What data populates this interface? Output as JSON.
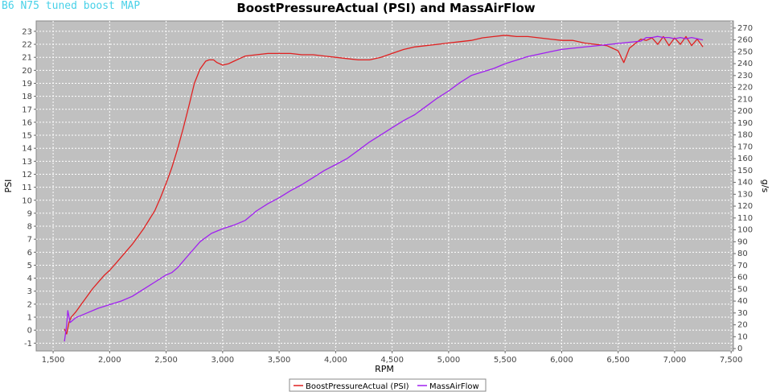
{
  "caption": "B6 N75 tuned boost MAP",
  "colors": {
    "plot_bg": "#c0c0c0",
    "grid": "#ffffff",
    "boost": "#e02020",
    "maf": "#a020f0"
  },
  "chart_data": {
    "type": "line",
    "title": "BoostPressureActual (PSI) and MassAirFlow",
    "xlabel": "RPM",
    "ylabel": "PSI",
    "y2label": "g/s",
    "xlim": [
      1350,
      7520
    ],
    "ylim": [
      -1.6,
      23.8
    ],
    "y2lim": [
      -2,
      276
    ],
    "x_ticks": [
      1500,
      2000,
      2500,
      3000,
      3500,
      4000,
      4500,
      5000,
      5500,
      6000,
      6500,
      7000,
      7500
    ],
    "x_tick_labels": [
      "1,500",
      "2,000",
      "2,500",
      "3,000",
      "3,500",
      "4,000",
      "4,500",
      "5,000",
      "5,500",
      "6,000",
      "6,500",
      "7,000",
      "7,500"
    ],
    "y_ticks": [
      -1,
      0,
      1,
      2,
      3,
      4,
      5,
      6,
      7,
      8,
      9,
      10,
      11,
      12,
      13,
      14,
      15,
      16,
      17,
      18,
      19,
      20,
      21,
      22,
      23
    ],
    "y2_ticks": [
      0,
      10,
      20,
      30,
      40,
      50,
      60,
      70,
      80,
      90,
      100,
      110,
      120,
      130,
      140,
      150,
      160,
      170,
      180,
      190,
      200,
      210,
      220,
      230,
      240,
      250,
      260,
      270
    ],
    "grid": true,
    "legend_position": "bottom-center",
    "series": [
      {
        "name": "BoostPressureActual (PSI)",
        "axis": "left",
        "x": [
          1600,
          1620,
          1640,
          1660,
          1700,
          1750,
          1800,
          1850,
          1900,
          1950,
          2000,
          2050,
          2100,
          2150,
          2200,
          2250,
          2300,
          2350,
          2400,
          2450,
          2500,
          2550,
          2600,
          2650,
          2700,
          2750,
          2800,
          2850,
          2880,
          2920,
          2950,
          3000,
          3050,
          3100,
          3150,
          3200,
          3300,
          3400,
          3500,
          3600,
          3700,
          3800,
          3900,
          4000,
          4100,
          4200,
          4300,
          4400,
          4500,
          4600,
          4700,
          4800,
          4900,
          5000,
          5100,
          5200,
          5300,
          5400,
          5500,
          5600,
          5700,
          5800,
          5900,
          6000,
          6100,
          6200,
          6300,
          6400,
          6500,
          6550,
          6600,
          6700,
          6750,
          6800,
          6850,
          6900,
          6950,
          7000,
          7050,
          7100,
          7150,
          7200,
          7250
        ],
        "y": [
          0.1,
          -0.3,
          0.6,
          1.0,
          1.4,
          2.0,
          2.6,
          3.2,
          3.7,
          4.2,
          4.6,
          5.1,
          5.6,
          6.1,
          6.6,
          7.2,
          7.8,
          8.5,
          9.2,
          10.2,
          11.3,
          12.5,
          13.9,
          15.5,
          17.2,
          19.0,
          20.1,
          20.7,
          20.8,
          20.8,
          20.6,
          20.4,
          20.5,
          20.7,
          20.9,
          21.1,
          21.2,
          21.3,
          21.3,
          21.3,
          21.2,
          21.2,
          21.1,
          21.0,
          20.9,
          20.8,
          20.8,
          21.0,
          21.3,
          21.6,
          21.8,
          21.9,
          22.0,
          22.1,
          22.2,
          22.3,
          22.5,
          22.6,
          22.7,
          22.6,
          22.6,
          22.5,
          22.4,
          22.3,
          22.3,
          22.1,
          22.0,
          21.9,
          21.5,
          20.6,
          21.7,
          22.4,
          22.3,
          22.5,
          22.0,
          22.6,
          21.9,
          22.5,
          22.0,
          22.6,
          21.9,
          22.4,
          21.8
        ]
      },
      {
        "name": "MassAirFlow",
        "axis": "right",
        "x": [
          1600,
          1620,
          1630,
          1650,
          1700,
          1800,
          1900,
          2000,
          2100,
          2200,
          2300,
          2400,
          2500,
          2550,
          2600,
          2700,
          2800,
          2900,
          3000,
          3100,
          3200,
          3300,
          3400,
          3500,
          3600,
          3700,
          3800,
          3900,
          4000,
          4100,
          4200,
          4300,
          4400,
          4500,
          4600,
          4700,
          4800,
          4900,
          5000,
          5100,
          5200,
          5300,
          5400,
          5500,
          5600,
          5700,
          5800,
          5900,
          6000,
          6100,
          6200,
          6300,
          6400,
          6500,
          6600,
          6700,
          6750,
          6800,
          6850,
          6900,
          6950,
          7000,
          7050,
          7100,
          7150,
          7200,
          7250
        ],
        "y": [
          6,
          20,
          32,
          22,
          26,
          30,
          34,
          37,
          40,
          44,
          50,
          56,
          62,
          64,
          68,
          79,
          90,
          97,
          101,
          104,
          108,
          116,
          122,
          127,
          133,
          138,
          144,
          150,
          155,
          160,
          167,
          174,
          180,
          186,
          192,
          197,
          204,
          211,
          217,
          224,
          230,
          233,
          236,
          240,
          243,
          246,
          248,
          250,
          252,
          253,
          254,
          255,
          256,
          257,
          258,
          259,
          262,
          262,
          263,
          262,
          262,
          261,
          262,
          261,
          262,
          261,
          260
        ]
      }
    ]
  }
}
